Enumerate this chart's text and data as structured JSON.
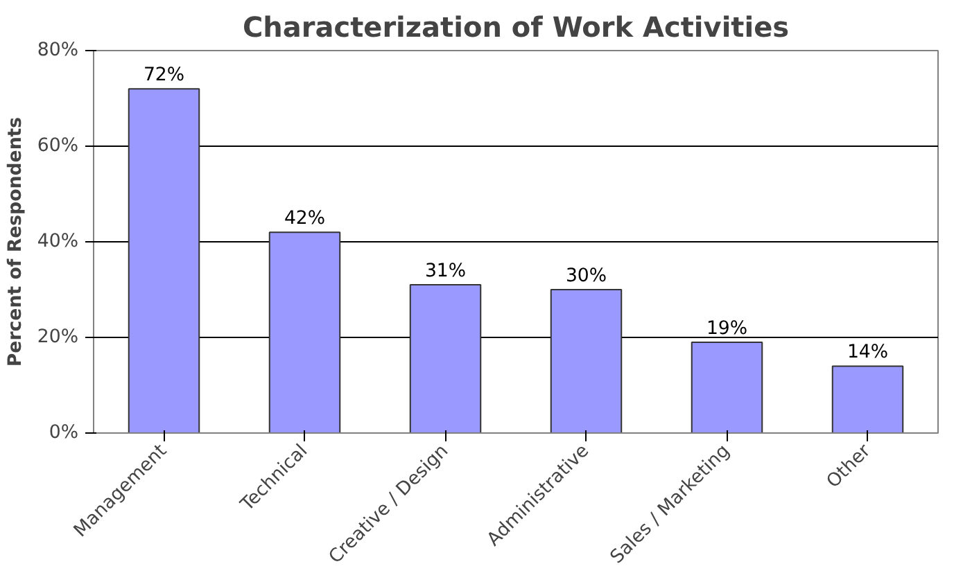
{
  "chart_data": {
    "type": "bar",
    "title": "Characterization of Work Activities",
    "ylabel": "Percent of Respondents",
    "categories": [
      "Management",
      "Technical",
      "Creative / Design",
      "Administrative",
      "Sales / Marketing",
      "Other"
    ],
    "values": [
      72,
      42,
      31,
      30,
      19,
      14
    ],
    "value_labels": [
      "72%",
      "42%",
      "31%",
      "30%",
      "19%",
      "14%"
    ],
    "color": "#9999ff",
    "ylim": [
      0,
      80
    ],
    "yticks": [
      {
        "value": 0,
        "label": "0%"
      },
      {
        "value": 20,
        "label": "20%"
      },
      {
        "value": 40,
        "label": "40%"
      },
      {
        "value": 60,
        "label": "60%"
      },
      {
        "value": 80,
        "label": "80%"
      }
    ],
    "grid": "y"
  }
}
